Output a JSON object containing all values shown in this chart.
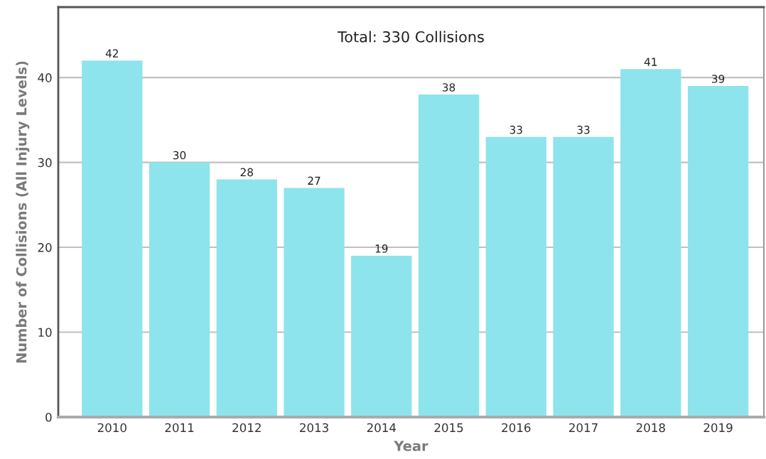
{
  "chart_data": {
    "type": "bar",
    "title": "Total: 330 Collisions",
    "xlabel": "Year",
    "ylabel": "Number of Collisions (All Injury Levels)",
    "categories": [
      "2010",
      "2011",
      "2012",
      "2013",
      "2014",
      "2015",
      "2016",
      "2017",
      "2018",
      "2019"
    ],
    "values": [
      42,
      30,
      28,
      27,
      19,
      38,
      33,
      33,
      41,
      39
    ],
    "color": "#8de4ec",
    "ylim": [
      0,
      48.3
    ],
    "yticks": [
      0,
      10,
      20,
      30,
      40
    ],
    "grid": "y",
    "data_labels": true
  }
}
